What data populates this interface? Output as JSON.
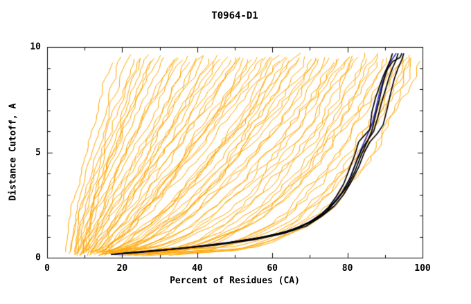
{
  "chart_data": {
    "type": "line",
    "title": "T0964-D1",
    "xlabel": "Percent of Residues (CA)",
    "ylabel": "Distance Cutoff, A",
    "xlim": [
      0,
      100
    ],
    "ylim": [
      0,
      10
    ],
    "x_ticks": [
      0,
      20,
      40,
      60,
      80,
      100
    ],
    "y_ticks": [
      0,
      5,
      10
    ],
    "x_minor_ticks": [
      10,
      30,
      50,
      70,
      90
    ],
    "y_minor_ticks": [
      1,
      2,
      3,
      4,
      6,
      7,
      8,
      9
    ],
    "grid": false,
    "legend": false,
    "frame_color": "#000000",
    "series": [
      {
        "name": "prediction-curves",
        "color": "#FFA500",
        "line_width": 1,
        "type": "param",
        "curves": [
          [
            5,
            18,
            1.3
          ],
          [
            6,
            20,
            1.2
          ],
          [
            7,
            22,
            1.25
          ],
          [
            6,
            24,
            1.15
          ],
          [
            8,
            25,
            1.3
          ],
          [
            7,
            27,
            1.2
          ],
          [
            9,
            28,
            1.1
          ],
          [
            8,
            30,
            1.25
          ],
          [
            10,
            29,
            1.35
          ],
          [
            9,
            26,
            1.15
          ],
          [
            7,
            32,
            1.1
          ],
          [
            8,
            34,
            1.0
          ],
          [
            10,
            35,
            1.15
          ],
          [
            9,
            37,
            1.05
          ],
          [
            11,
            38,
            0.95
          ],
          [
            10,
            40,
            1.1
          ],
          [
            12,
            41,
            1.0
          ],
          [
            11,
            43,
            1.05
          ],
          [
            13,
            44,
            0.95
          ],
          [
            12,
            45,
            1.0
          ],
          [
            8,
            36,
            1.15
          ],
          [
            9,
            42,
            1.05
          ],
          [
            10,
            46,
            0.95
          ],
          [
            12,
            48,
            0.9
          ],
          [
            11,
            50,
            1.0
          ],
          [
            13,
            51,
            0.85
          ],
          [
            14,
            52,
            0.95
          ],
          [
            12,
            54,
            0.8
          ],
          [
            15,
            55,
            0.9
          ],
          [
            13,
            56,
            0.78
          ],
          [
            16,
            57,
            0.95
          ],
          [
            14,
            58,
            0.82
          ],
          [
            15,
            60,
            0.88
          ],
          [
            11,
            53,
            0.92
          ],
          [
            16,
            59,
            1.0
          ],
          [
            10,
            47,
            0.85
          ],
          [
            12,
            61,
            0.75
          ],
          [
            14,
            62,
            0.7
          ],
          [
            13,
            64,
            0.65
          ],
          [
            15,
            65,
            0.72
          ],
          [
            16,
            66,
            0.78
          ],
          [
            14,
            68,
            0.62
          ],
          [
            17,
            69,
            0.7
          ],
          [
            15,
            70,
            0.6
          ],
          [
            18,
            71,
            0.68
          ],
          [
            16,
            72,
            0.64
          ],
          [
            19,
            73,
            0.72
          ],
          [
            17,
            74,
            0.58
          ],
          [
            20,
            75,
            0.66
          ],
          [
            13,
            63,
            0.7
          ],
          [
            18,
            67,
            0.75
          ],
          [
            14,
            76,
            0.55
          ],
          [
            16,
            77,
            0.5
          ],
          [
            18,
            78,
            0.55
          ],
          [
            15,
            79,
            0.48
          ],
          [
            20,
            80,
            0.52
          ],
          [
            17,
            81,
            0.45
          ],
          [
            22,
            82,
            0.5
          ],
          [
            19,
            83,
            0.44
          ],
          [
            24,
            84,
            0.48
          ],
          [
            21,
            85,
            0.42
          ],
          [
            26,
            86,
            0.46
          ],
          [
            23,
            87,
            0.4
          ],
          [
            28,
            88,
            0.44
          ],
          [
            25,
            89,
            0.42
          ],
          [
            20,
            90,
            0.38
          ],
          [
            18,
            91,
            0.36
          ],
          [
            22,
            92,
            0.33
          ],
          [
            26,
            93,
            0.38
          ],
          [
            30,
            94,
            0.32
          ],
          [
            24,
            95,
            0.35
          ],
          [
            28,
            96,
            0.3
          ],
          [
            32,
            97,
            0.34
          ],
          [
            35,
            98,
            0.3
          ],
          [
            20,
            99,
            0.32
          ],
          [
            25,
            100,
            0.3
          ]
        ]
      },
      {
        "name": "reference-model-curve",
        "color": "#3333CC",
        "line_width": 1.7,
        "type": "points",
        "curves": [
          [
            [
              18,
              0.15
            ],
            [
              28,
              0.3
            ],
            [
              38,
              0.5
            ],
            [
              48,
              0.72
            ],
            [
              57,
              0.95
            ],
            [
              64,
              1.25
            ],
            [
              69,
              1.6
            ],
            [
              73,
              2.05
            ],
            [
              76,
              2.55
            ],
            [
              78.5,
              3.1
            ],
            [
              80.5,
              3.7
            ],
            [
              82,
              4.4
            ],
            [
              83.5,
              5.1
            ],
            [
              85,
              5.7
            ],
            [
              86.5,
              6.3
            ],
            [
              87.5,
              7.0
            ],
            [
              88.5,
              7.8
            ],
            [
              89.5,
              8.4
            ],
            [
              90.5,
              8.9
            ],
            [
              91.5,
              9.3
            ],
            [
              93,
              9.7
            ]
          ]
        ]
      },
      {
        "name": "top-model-curves",
        "color": "#000000",
        "line_width": 1.7,
        "type": "points",
        "curves": [
          [
            [
              17,
              0.15
            ],
            [
              26,
              0.3
            ],
            [
              36,
              0.45
            ],
            [
              46,
              0.65
            ],
            [
              55,
              0.9
            ],
            [
              62,
              1.15
            ],
            [
              68,
              1.5
            ],
            [
              72,
              1.9
            ],
            [
              75,
              2.4
            ],
            [
              77,
              2.9
            ],
            [
              79,
              3.5
            ],
            [
              80.5,
              4.2
            ],
            [
              82,
              4.9
            ],
            [
              83,
              5.5
            ],
            [
              84.5,
              5.8
            ],
            [
              86,
              6.1
            ],
            [
              86.5,
              6.9
            ],
            [
              87.5,
              7.6
            ],
            [
              88.5,
              8.1
            ],
            [
              89.5,
              8.6
            ],
            [
              90.5,
              9.0
            ],
            [
              91.5,
              9.4
            ],
            [
              92,
              9.7
            ]
          ],
          [
            [
              18,
              0.18
            ],
            [
              30,
              0.35
            ],
            [
              42,
              0.55
            ],
            [
              52,
              0.8
            ],
            [
              60,
              1.05
            ],
            [
              66,
              1.35
            ],
            [
              71,
              1.75
            ],
            [
              74.5,
              2.2
            ],
            [
              77,
              2.7
            ],
            [
              79,
              3.2
            ],
            [
              81,
              3.9
            ],
            [
              82.5,
              4.6
            ],
            [
              84,
              5.2
            ],
            [
              85.5,
              5.6
            ],
            [
              87,
              6.0
            ],
            [
              88,
              6.6
            ],
            [
              89,
              7.3
            ],
            [
              90,
              7.9
            ],
            [
              91,
              8.5
            ],
            [
              92,
              9.0
            ],
            [
              93,
              9.4
            ],
            [
              93.5,
              9.7
            ]
          ],
          [
            [
              20,
              0.2
            ],
            [
              33,
              0.4
            ],
            [
              45,
              0.6
            ],
            [
              55,
              0.85
            ],
            [
              63,
              1.15
            ],
            [
              69,
              1.5
            ],
            [
              73,
              1.95
            ],
            [
              76.5,
              2.45
            ],
            [
              79,
              3.0
            ],
            [
              81,
              3.6
            ],
            [
              83,
              4.3
            ],
            [
              84.5,
              5.0
            ],
            [
              86,
              5.5
            ],
            [
              88,
              5.9
            ],
            [
              89.5,
              6.3
            ],
            [
              90.5,
              7.0
            ],
            [
              91.5,
              7.8
            ],
            [
              92.5,
              8.5
            ],
            [
              93.5,
              9.0
            ],
            [
              94.5,
              9.4
            ],
            [
              95,
              9.7
            ]
          ],
          [
            [
              22,
              0.22
            ],
            [
              36,
              0.45
            ],
            [
              48,
              0.7
            ],
            [
              58,
              1.0
            ],
            [
              65,
              1.3
            ],
            [
              70,
              1.7
            ],
            [
              74,
              2.2
            ],
            [
              77.5,
              2.8
            ],
            [
              80,
              3.4
            ],
            [
              82,
              4.1
            ],
            [
              83.5,
              4.8
            ],
            [
              85,
              5.4
            ],
            [
              86.5,
              6.0
            ],
            [
              87.5,
              6.8
            ],
            [
              88.5,
              7.5
            ],
            [
              89.5,
              8.3
            ],
            [
              90.5,
              8.9
            ],
            [
              92,
              9.3
            ],
            [
              94,
              9.5
            ],
            [
              94.5,
              9.7
            ]
          ]
        ]
      }
    ]
  }
}
